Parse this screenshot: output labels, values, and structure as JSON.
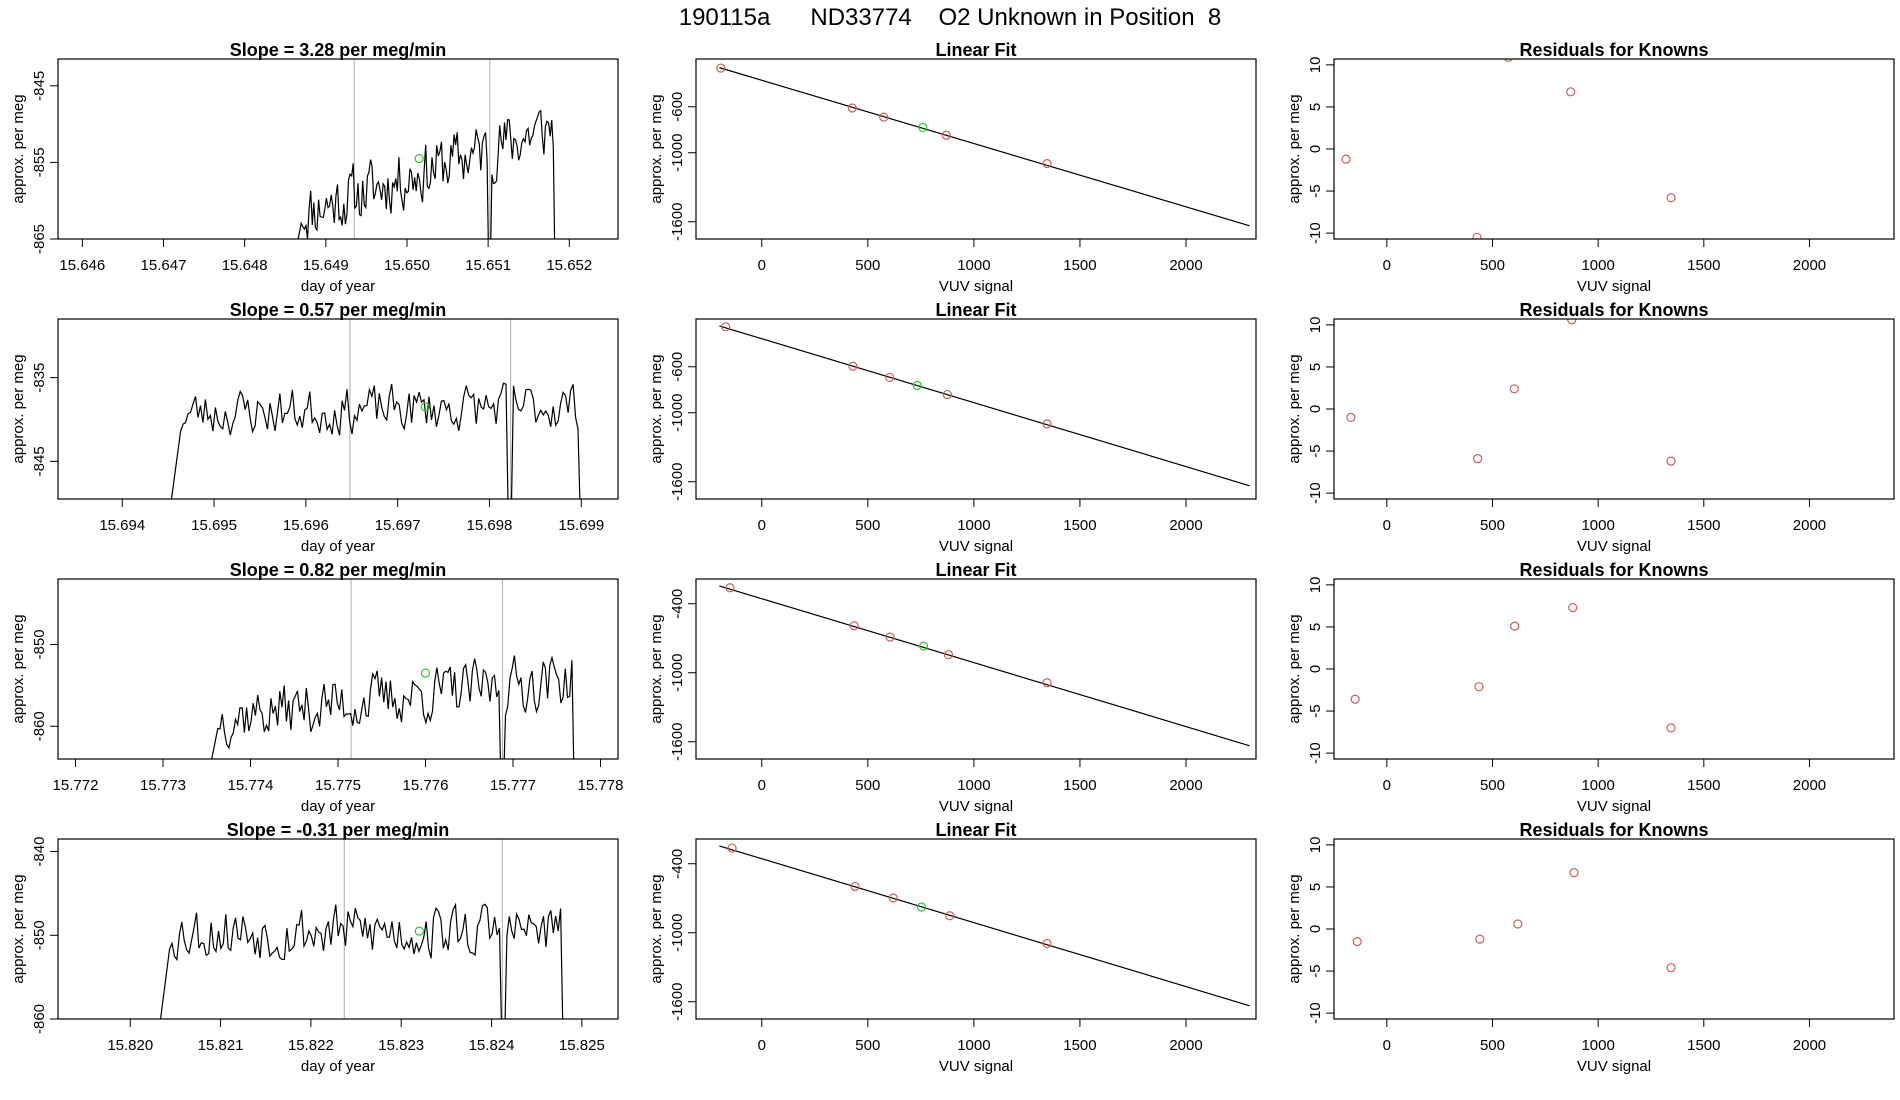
{
  "figure_title": "190115a      ND33774    O2 Unknown in Position  8",
  "colors": {
    "known": "#cd5c5c",
    "unknown": "#22cc22",
    "line": "#000000",
    "vline": "#bbbbbb"
  },
  "chart_data": [
    {
      "type": "line",
      "panel": "time-series",
      "row": 1,
      "title": "Slope =  3.28  per meg/min",
      "xlabel": "day of year",
      "ylabel": "approx. per meg",
      "xlim": [
        15.6457,
        15.6526
      ],
      "ylim": [
        -865,
        -841.5
      ],
      "xticks": [
        "15.646",
        "15.647",
        "15.648",
        "15.649",
        "15.650",
        "15.651",
        "15.652"
      ],
      "yticks": [
        "-845",
        "-855",
        "-865"
      ],
      "vlines": [
        15.64935,
        15.65102
      ],
      "trace": {
        "start": 15.6486,
        "end": 15.6519,
        "base": -856,
        "trend": 12,
        "noise": 3.5,
        "seed": 11
      },
      "unknown_point": {
        "x": 15.65015,
        "y": -854.5
      }
    },
    {
      "type": "scatter",
      "panel": "linear-fit",
      "row": 1,
      "title": "Linear Fit",
      "xlabel": "VUV signal",
      "ylabel": "approx. per meg",
      "xlim": [
        -310,
        2330
      ],
      "ylim": [
        -1750,
        -185
      ],
      "xticks": [
        "0",
        "500",
        "1000",
        "1500",
        "2000"
      ],
      "yticks": [
        "-600",
        "-1000",
        "-1600"
      ],
      "fit_line": {
        "x1": -200,
        "y1": -260,
        "x2": 2300,
        "y2": -1635
      },
      "knowns": [
        [
          -193,
          -264
        ],
        [
          427,
          -611
        ],
        [
          575,
          -690
        ],
        [
          870,
          -848
        ],
        [
          1345,
          -1094
        ]
      ],
      "unknown": [
        [
          759,
          -780
        ]
      ]
    },
    {
      "type": "scatter",
      "panel": "residuals",
      "row": 1,
      "title": "Residuals for Knowns",
      "xlabel": "VUV signal",
      "ylabel": "approx. per meg",
      "xlim": [
        -250,
        2400
      ],
      "ylim": [
        -10.7,
        10.7
      ],
      "xticks": [
        "0",
        "500",
        "1000",
        "1500",
        "2000"
      ],
      "yticks": [
        "10",
        "5",
        "0",
        "-5",
        "-10"
      ],
      "points": [
        [
          -193,
          -1.2
        ],
        [
          427,
          -10.5
        ],
        [
          575,
          10.9
        ],
        [
          870,
          6.8
        ],
        [
          1345,
          -5.8
        ]
      ]
    },
    {
      "type": "line",
      "panel": "time-series",
      "row": 2,
      "title": "Slope =  0.57  per meg/min",
      "xlabel": "day of year",
      "ylabel": "approx. per meg",
      "xlim": [
        15.6933,
        15.6994
      ],
      "ylim": [
        -849.5,
        -828
      ],
      "xticks": [
        "15.694",
        "15.695",
        "15.696",
        "15.697",
        "15.698",
        "15.699"
      ],
      "yticks": [
        "-835",
        "-845"
      ],
      "vlines": [
        15.69648,
        15.69823
      ],
      "trace": {
        "start": 15.6945,
        "end": 15.6991,
        "base": -838.8,
        "trend": 1,
        "noise": 2.5,
        "seed": 23
      },
      "unknown_point": {
        "x": 15.6973,
        "y": -838.5
      }
    },
    {
      "type": "scatter",
      "panel": "linear-fit",
      "row": 2,
      "title": "Linear Fit",
      "xlabel": "VUV signal",
      "ylabel": "approx. per meg",
      "xlim": [
        -310,
        2330
      ],
      "ylim": [
        -1750,
        -185
      ],
      "xticks": [
        "0",
        "500",
        "1000",
        "1500",
        "2000"
      ],
      "yticks": [
        "-600",
        "-1000",
        "-1600"
      ],
      "fit_line": {
        "x1": -200,
        "y1": -245,
        "x2": 2300,
        "y2": -1635
      },
      "knowns": [
        [
          -170,
          -253
        ],
        [
          430,
          -596
        ],
        [
          603,
          -693
        ],
        [
          875,
          -842
        ],
        [
          1345,
          -1097
        ]
      ],
      "unknown": [
        [
          733,
          -763
        ]
      ]
    },
    {
      "type": "scatter",
      "panel": "residuals",
      "row": 2,
      "title": "Residuals for Knowns",
      "xlabel": "VUV signal",
      "ylabel": "approx. per meg",
      "xlim": [
        -250,
        2400
      ],
      "ylim": [
        -10.7,
        10.7
      ],
      "xticks": [
        "0",
        "500",
        "1000",
        "1500",
        "2000"
      ],
      "yticks": [
        "10",
        "5",
        "0",
        "-5",
        "-10"
      ],
      "points": [
        [
          -170,
          -1.0
        ],
        [
          430,
          -5.9
        ],
        [
          603,
          2.4
        ],
        [
          875,
          10.6
        ],
        [
          1345,
          -6.2
        ]
      ]
    },
    {
      "type": "line",
      "panel": "time-series",
      "row": 3,
      "title": "Slope =  0.82  per meg/min",
      "xlabel": "day of year",
      "ylabel": "approx. per meg",
      "xlim": [
        15.7718,
        15.7782
      ],
      "ylim": [
        -864,
        -842
      ],
      "xticks": [
        "15.772",
        "15.773",
        "15.774",
        "15.775",
        "15.776",
        "15.777",
        "15.778"
      ],
      "yticks": [
        "-850",
        "-860"
      ],
      "vlines": [
        15.77515,
        15.77688
      ],
      "trace": {
        "start": 15.7735,
        "end": 15.7778,
        "base": -856.5,
        "trend": 5,
        "noise": 3,
        "seed": 37
      },
      "unknown_point": {
        "x": 15.776,
        "y": -853.5
      }
    },
    {
      "type": "scatter",
      "panel": "linear-fit",
      "row": 3,
      "title": "Linear Fit",
      "xlabel": "VUV signal",
      "ylabel": "approx. per meg",
      "xlim": [
        -310,
        2330
      ],
      "ylim": [
        -1750,
        -185
      ],
      "xticks": [
        "0",
        "500",
        "1000",
        "1500",
        "2000"
      ],
      "yticks": [
        "-400",
        "-1000",
        "-1600"
      ],
      "fit_line": {
        "x1": -200,
        "y1": -245,
        "x2": 2300,
        "y2": -1635
      },
      "knowns": [
        [
          -150,
          -261
        ],
        [
          436,
          -591
        ],
        [
          605,
          -690
        ],
        [
          880,
          -843
        ],
        [
          1345,
          -1087
        ]
      ],
      "unknown": [
        [
          763,
          -768
        ]
      ]
    },
    {
      "type": "scatter",
      "panel": "residuals",
      "row": 3,
      "title": "Residuals for Knowns",
      "xlabel": "VUV signal",
      "ylabel": "approx. per meg",
      "xlim": [
        -250,
        2400
      ],
      "ylim": [
        -10.7,
        10.7
      ],
      "xticks": [
        "0",
        "500",
        "1000",
        "1500",
        "2000"
      ],
      "yticks": [
        "10",
        "5",
        "0",
        "-5",
        "-10"
      ],
      "points": [
        [
          -150,
          -3.6
        ],
        [
          436,
          -2.1
        ],
        [
          605,
          5.1
        ],
        [
          880,
          7.3
        ],
        [
          1345,
          -7.0
        ]
      ]
    },
    {
      "type": "line",
      "panel": "time-series",
      "row": 4,
      "title": "Slope =  -0.31  per meg/min",
      "xlabel": "day of year",
      "ylabel": "approx. per meg",
      "xlim": [
        15.8192,
        15.8254
      ],
      "ylim": [
        -860,
        -838.5
      ],
      "xticks": [
        "15.820",
        "15.821",
        "15.822",
        "15.823",
        "15.824",
        "15.825"
      ],
      "yticks": [
        "-840",
        "-850",
        "-860"
      ],
      "vlines": [
        15.82237,
        15.82412
      ],
      "trace": {
        "start": 15.8203,
        "end": 15.8249,
        "base": -849.5,
        "trend": 0,
        "noise": 3,
        "seed": 53
      },
      "unknown_point": {
        "x": 15.8232,
        "y": -849.5
      }
    },
    {
      "type": "scatter",
      "panel": "linear-fit",
      "row": 4,
      "title": "Linear Fit",
      "xlabel": "VUV signal",
      "ylabel": "approx. per meg",
      "xlim": [
        -310,
        2330
      ],
      "ylim": [
        -1750,
        -185
      ],
      "xticks": [
        "0",
        "500",
        "1000",
        "1500",
        "2000"
      ],
      "yticks": [
        "-400",
        "-1000",
        "-1600"
      ],
      "fit_line": {
        "x1": -200,
        "y1": -245,
        "x2": 2300,
        "y2": -1635
      },
      "knowns": [
        [
          -140,
          -264
        ],
        [
          440,
          -598
        ],
        [
          620,
          -698
        ],
        [
          886,
          -852
        ],
        [
          1345,
          -1094
        ]
      ],
      "unknown": [
        [
          753,
          -776
        ]
      ]
    },
    {
      "type": "scatter",
      "panel": "residuals",
      "row": 4,
      "title": "Residuals for Knowns",
      "xlabel": "VUV signal",
      "ylabel": "approx. per meg",
      "xlim": [
        -250,
        2400
      ],
      "ylim": [
        -10.7,
        10.7
      ],
      "xticks": [
        "0",
        "500",
        "1000",
        "1500",
        "2000"
      ],
      "yticks": [
        "10",
        "5",
        "0",
        "-5",
        "-10"
      ],
      "points": [
        [
          -140,
          -1.5
        ],
        [
          440,
          -1.2
        ],
        [
          620,
          0.6
        ],
        [
          886,
          6.7
        ],
        [
          1345,
          -4.6
        ]
      ]
    }
  ]
}
